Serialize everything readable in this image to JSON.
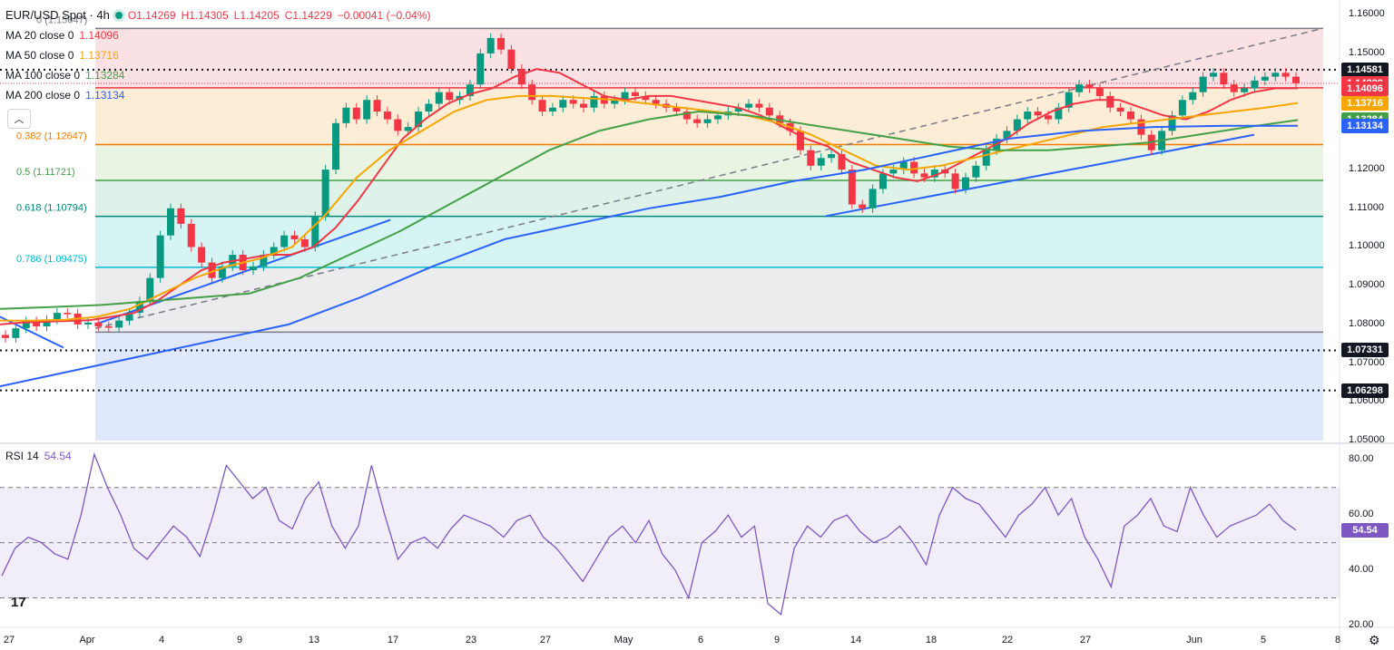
{
  "header": {
    "symbol": "EUR/USD Spot · 4h",
    "open": "O1.14269",
    "high": "H1.14305",
    "low": "L1.14205",
    "close": "C1.14229",
    "change": "−0.00041 (−0.04%)"
  },
  "indicators": [
    {
      "label": "MA 20 close 0",
      "value": "1.14096",
      "color": "#f23645"
    },
    {
      "label": "MA 50 close 0",
      "value": "1.13716",
      "color": "#f7a600"
    },
    {
      "label": "MA 100 close 0",
      "value": "1.13284",
      "color": "#43a047"
    },
    {
      "label": "MA 200 close 0",
      "value": "1.13134",
      "color": "#2962ff"
    }
  ],
  "collapse_icon": "chevron-up-icon",
  "rsi": {
    "label": "RSI 14",
    "value": "54.54",
    "color": "#7e57c2"
  },
  "price_axis": [
    "1.16000",
    "1.15000",
    "1.14000",
    "1.13000",
    "1.12000",
    "1.11000",
    "1.10000",
    "1.09000",
    "1.08000",
    "1.07000",
    "1.06000",
    "1.05000"
  ],
  "price_badges": [
    {
      "value": "1.14581",
      "bg": "#131722"
    },
    {
      "value": "1.14229",
      "bg": "#f23645"
    },
    {
      "value": "1.14096",
      "bg": "#f23645"
    },
    {
      "value": "1.13716",
      "bg": "#f7a600"
    },
    {
      "value": "1.13284",
      "bg": "#43a047"
    },
    {
      "value": "1.13134",
      "bg": "#2962ff"
    },
    {
      "value": "1.07331",
      "bg": "#131722"
    },
    {
      "value": "1.06298",
      "bg": "#131722"
    }
  ],
  "rsi_axis": [
    "80.00",
    "60.00",
    "40.00",
    "20.00"
  ],
  "rsi_badge": "54.54",
  "time_axis": [
    "27",
    "Apr",
    "4",
    "9",
    "13",
    "17",
    "23",
    "27",
    "May",
    "6",
    "9",
    "14",
    "18",
    "22",
    "27",
    "Jun",
    "5",
    "8"
  ],
  "fib_labels": [
    "0 (1.15647)",
    "0.382 (1.12647)",
    "0.5 (1.11721)",
    "0.618 (1.10794)",
    "0.786 (1.09475)"
  ],
  "chart_data": {
    "type": "line",
    "title": "EUR/USD Spot · 4h",
    "price_range": [
      1.05,
      1.161
    ],
    "rsi_range": [
      20,
      85
    ],
    "fibonacci": [
      {
        "level": "0",
        "price": 1.15647,
        "color": "#787b86",
        "zone": "#f8d7da"
      },
      {
        "level": "0.236",
        "price": 1.14113,
        "color": "#f23645",
        "zone": "#fde7c8"
      },
      {
        "level": "0.382",
        "price": 1.12647,
        "color": "#f57c00",
        "zone": "#e1f0d8"
      },
      {
        "level": "0.5",
        "price": 1.11721,
        "color": "#43a047",
        "zone": "#d3eee2"
      },
      {
        "level": "0.618",
        "price": 1.10794,
        "color": "#00897b",
        "zone": "#c8f0f0"
      },
      {
        "level": "0.786",
        "price": 1.09475,
        "color": "#00bcd4",
        "zone": "#e6e6e8"
      },
      {
        "level": "1",
        "price": 1.078,
        "color": "#787b86",
        "zone": "#d6e2fa"
      }
    ],
    "horizontal_levels": [
      1.14581,
      1.07331,
      1.06298
    ],
    "close": [
      1.0765,
      1.079,
      1.0808,
      1.0795,
      1.0812,
      1.083,
      1.0828,
      1.08,
      1.0805,
      1.0795,
      1.0792,
      1.081,
      1.083,
      1.086,
      1.092,
      1.103,
      1.11,
      1.106,
      1.1,
      1.096,
      1.092,
      1.095,
      1.098,
      1.094,
      1.095,
      1.098,
      1.1,
      1.103,
      1.102,
      1.1,
      1.108,
      1.12,
      1.132,
      1.136,
      1.133,
      1.138,
      1.135,
      1.133,
      1.13,
      1.131,
      1.135,
      1.137,
      1.14,
      1.138,
      1.139,
      1.142,
      1.15,
      1.154,
      1.151,
      1.146,
      1.142,
      1.138,
      1.135,
      1.136,
      1.138,
      1.137,
      1.136,
      1.139,
      1.137,
      1.138,
      1.14,
      1.139,
      1.138,
      1.137,
      1.136,
      1.135,
      1.133,
      1.132,
      1.133,
      1.134,
      1.135,
      1.136,
      1.137,
      1.136,
      1.134,
      1.132,
      1.13,
      1.125,
      1.121,
      1.123,
      1.124,
      1.12,
      1.111,
      1.11,
      1.115,
      1.119,
      1.12,
      1.122,
      1.119,
      1.118,
      1.12,
      1.119,
      1.115,
      1.118,
      1.121,
      1.125,
      1.128,
      1.13,
      1.133,
      1.135,
      1.134,
      1.133,
      1.136,
      1.14,
      1.142,
      1.141,
      1.139,
      1.136,
      1.135,
      1.133,
      1.129,
      1.125,
      1.13,
      1.134,
      1.138,
      1.14,
      1.144,
      1.145,
      1.142,
      1.14,
      1.141,
      1.143,
      1.144,
      1.145,
      1.144,
      1.1423
    ],
    "series": [
      {
        "name": "MA 20 close 0",
        "values": [
          1.08,
          1.0805,
          1.0807,
          1.0809,
          1.0811,
          1.082,
          1.083,
          1.086,
          1.09,
          1.094,
          1.096,
          1.097,
          1.098,
          1.098,
          1.1,
          1.105,
          1.112,
          1.12,
          1.128,
          1.133,
          1.137,
          1.1395,
          1.141,
          1.144,
          1.146,
          1.145,
          1.142,
          1.139,
          1.138,
          1.139,
          1.139,
          1.138,
          1.137,
          1.136,
          1.134,
          1.131,
          1.128,
          1.126,
          1.122,
          1.12,
          1.118,
          1.117,
          1.119,
          1.122,
          1.125,
          1.128,
          1.132,
          1.135,
          1.137,
          1.138,
          1.138,
          1.136,
          1.134,
          1.133,
          1.135,
          1.138,
          1.14,
          1.141,
          1.141
        ]
      },
      {
        "name": "MA 50 close 0",
        "values": [
          1.081,
          1.081,
          1.0812,
          1.082,
          1.084,
          1.088,
          1.092,
          1.095,
          1.097,
          1.1,
          1.108,
          1.118,
          1.125,
          1.13,
          1.135,
          1.138,
          1.139,
          1.139,
          1.1385,
          1.138,
          1.137,
          1.136,
          1.135,
          1.134,
          1.132,
          1.129,
          1.125,
          1.121,
          1.12,
          1.121,
          1.123,
          1.125,
          1.127,
          1.129,
          1.131,
          1.132,
          1.133,
          1.134,
          1.135,
          1.136,
          1.1372
        ]
      },
      {
        "name": "MA 100 close 0",
        "values": [
          1.084,
          1.0845,
          1.085,
          1.086,
          1.087,
          1.088,
          1.092,
          1.098,
          1.104,
          1.111,
          1.118,
          1.125,
          1.13,
          1.133,
          1.135,
          1.134,
          1.132,
          1.13,
          1.128,
          1.126,
          1.125,
          1.125,
          1.126,
          1.127,
          1.129,
          1.131,
          1.1328
        ]
      },
      {
        "name": "MA 200 close 0",
        "values": [
          1.064,
          1.068,
          1.072,
          1.076,
          1.08,
          1.087,
          1.095,
          1.102,
          1.106,
          1.11,
          1.113,
          1.117,
          1.12,
          1.124,
          1.128,
          1.13,
          1.131,
          1.1313,
          1.1313
        ]
      }
    ],
    "rsi_values": [
      38,
      48,
      52,
      50,
      46,
      44,
      60,
      82,
      70,
      60,
      48,
      44,
      50,
      56,
      52,
      45,
      60,
      78,
      72,
      66,
      70,
      58,
      55,
      66,
      72,
      56,
      48,
      56,
      78,
      60,
      44,
      50,
      52,
      48,
      55,
      60,
      58,
      56,
      52,
      58,
      60,
      52,
      48,
      42,
      36,
      44,
      52,
      56,
      50,
      58,
      46,
      40,
      30,
      50,
      54,
      60,
      52,
      56,
      28,
      24,
      48,
      56,
      52,
      58,
      60,
      54,
      50,
      52,
      56,
      50,
      42,
      60,
      70,
      66,
      64,
      58,
      52,
      60,
      64,
      70,
      60,
      66,
      52,
      44,
      34,
      56,
      60,
      66,
      56,
      54,
      70,
      60,
      52,
      56,
      58,
      60,
      64,
      58,
      54.54
    ],
    "rsi_bands": [
      70,
      50,
      30
    ]
  }
}
